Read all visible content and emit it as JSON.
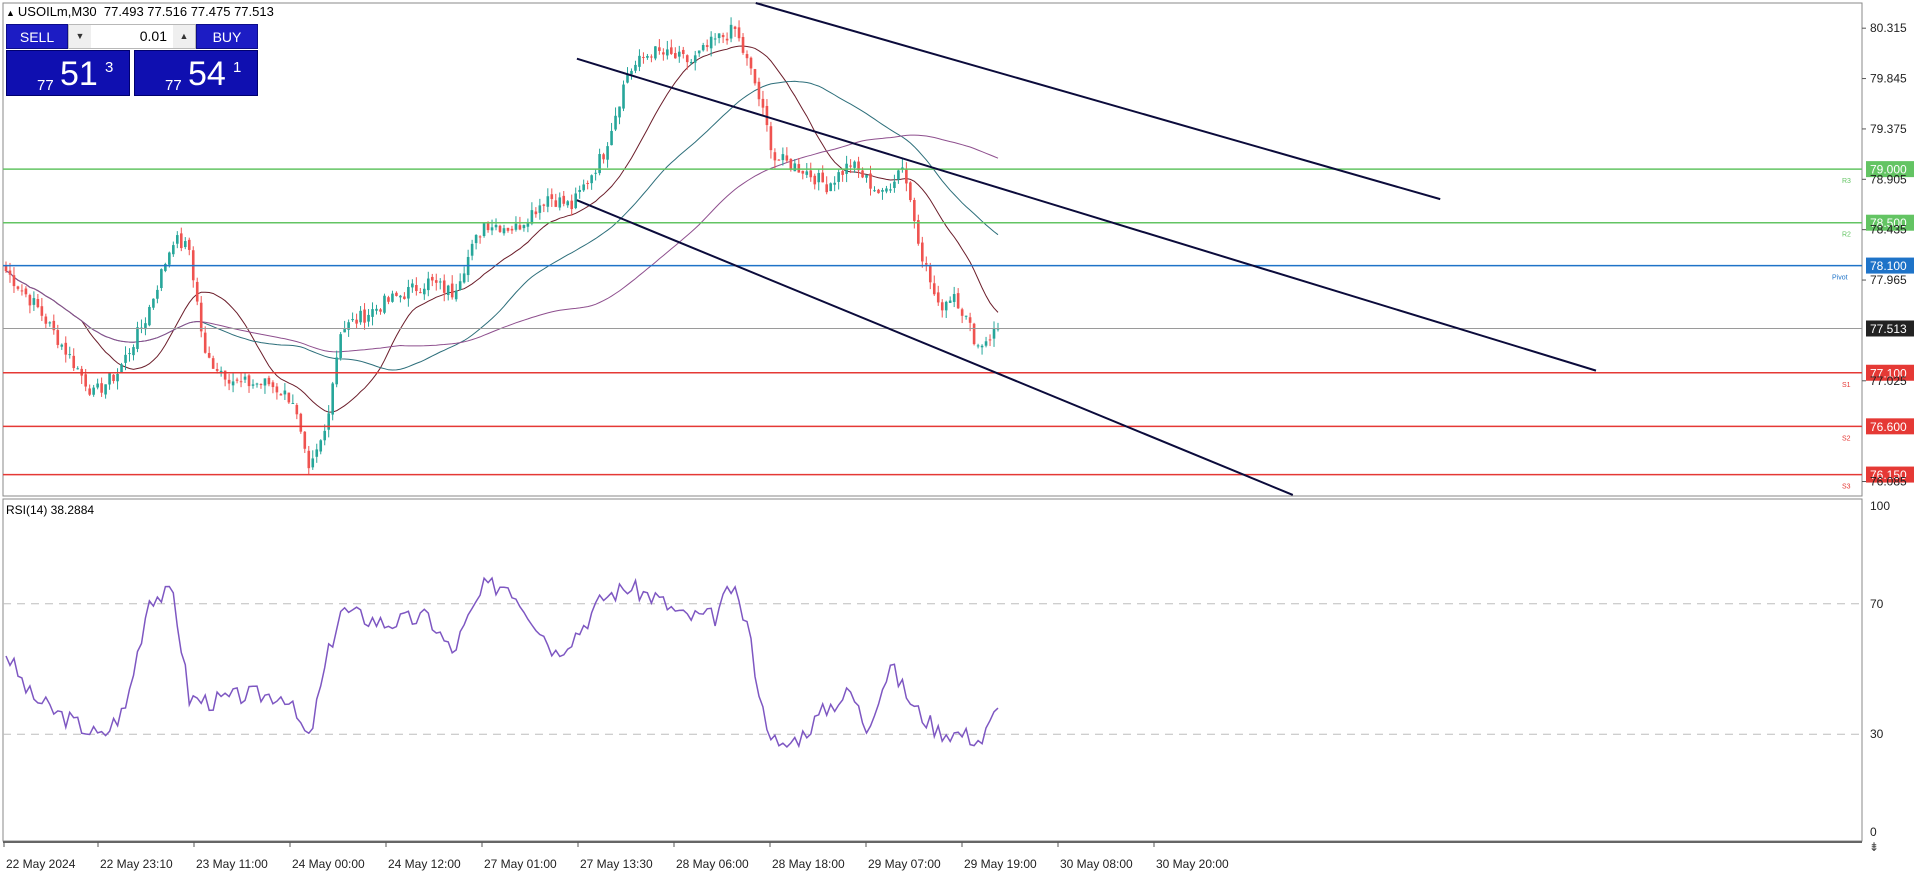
{
  "symbol_info": {
    "label": "USOILm,M30",
    "open": "77.493",
    "high": "77.516",
    "low": "77.475",
    "close": "77.513"
  },
  "trade_panel": {
    "sell_label": "SELL",
    "buy_label": "BUY",
    "lot_value": "0.01",
    "bid": {
      "prefix": "77",
      "big": "51",
      "sup": "3"
    },
    "ask": {
      "prefix": "77",
      "big": "54",
      "sup": "1"
    }
  },
  "colors": {
    "bull": "#26a69a",
    "bear": "#ef5350",
    "resistance": "#63c463",
    "support": "#e53935",
    "pivot": "#1e73c8",
    "current": "#222222",
    "channel": "#0b0b3b",
    "rsi_line": "#7e57c2",
    "ma_fast": "#6b1d2a",
    "ma_mid": "#2c6e7a",
    "ma_slow": "#8e4f8e"
  },
  "chart_data": [
    {
      "type": "candlestick",
      "title": "USOILm,M30",
      "ylim": [
        75.95,
        80.55
      ],
      "y_ticks": [
        "80.315",
        "79.845",
        "79.375",
        "78.905",
        "78.435",
        "77.965",
        "77.025",
        "76.085"
      ],
      "x_ticks": [
        "22 May 2024",
        "22 May 23:10",
        "23 May 11:00",
        "24 May 00:00",
        "24 May 12:00",
        "27 May 01:00",
        "27 May 13:30",
        "28 May 06:00",
        "28 May 18:00",
        "29 May 07:00",
        "29 May 19:00",
        "30 May 08:00",
        "30 May 20:00"
      ],
      "levels": [
        {
          "label": "79.000",
          "tag": "R3",
          "value": 79.0,
          "kind": "resistance"
        },
        {
          "label": "78.500",
          "tag": "R2",
          "value": 78.5,
          "kind": "resistance"
        },
        {
          "label": "78.100",
          "tag": "Pivot",
          "value": 78.1,
          "kind": "pivot"
        },
        {
          "label": "77.513",
          "tag": "",
          "value": 77.513,
          "kind": "current"
        },
        {
          "label": "77.100",
          "tag": "S1",
          "value": 77.1,
          "kind": "support"
        },
        {
          "label": "76.600",
          "tag": "S2",
          "value": 76.6,
          "kind": "support"
        },
        {
          "label": "76.150",
          "tag": "S3",
          "value": 76.15,
          "kind": "support"
        }
      ],
      "close_keypoints": [
        [
          0,
          78.05
        ],
        [
          8,
          77.7
        ],
        [
          16,
          77.25
        ],
        [
          22,
          76.9
        ],
        [
          28,
          77.1
        ],
        [
          35,
          77.6
        ],
        [
          42,
          78.35
        ],
        [
          46,
          78.25
        ],
        [
          50,
          77.25
        ],
        [
          58,
          77.0
        ],
        [
          66,
          77.0
        ],
        [
          72,
          76.85
        ],
        [
          76,
          76.15
        ],
        [
          80,
          76.55
        ],
        [
          84,
          77.5
        ],
        [
          95,
          77.75
        ],
        [
          106,
          77.95
        ],
        [
          112,
          77.85
        ],
        [
          120,
          78.5
        ],
        [
          128,
          78.45
        ],
        [
          136,
          78.75
        ],
        [
          142,
          78.65
        ],
        [
          150,
          79.15
        ],
        [
          156,
          79.9
        ],
        [
          162,
          80.1
        ],
        [
          172,
          80.0
        ],
        [
          178,
          80.2
        ],
        [
          183,
          80.3
        ],
        [
          188,
          79.8
        ],
        [
          193,
          79.1
        ],
        [
          200,
          79.0
        ],
        [
          206,
          78.85
        ],
        [
          212,
          79.05
        ],
        [
          220,
          78.75
        ],
        [
          225,
          79.05
        ],
        [
          230,
          78.2
        ],
        [
          234,
          77.7
        ],
        [
          238,
          77.85
        ],
        [
          244,
          77.35
        ],
        [
          249,
          77.513
        ]
      ],
      "channel_lines": [
        {
          "x": [
            143.3,
            399.1
          ],
          "y": [
            80.03,
            77.12
          ]
        },
        {
          "x": [
            188.2,
            360.0
          ],
          "y": [
            80.55,
            78.72
          ]
        },
        {
          "x": [
            143.3,
            323.0
          ],
          "y": [
            78.71,
            75.96
          ]
        }
      ],
      "moving_averages": [
        {
          "name": "",
          "color_key": "ma_fast",
          "period": 20
        },
        {
          "name": "",
          "color_key": "ma_mid",
          "period": 50
        },
        {
          "name": "",
          "color_key": "ma_slow",
          "period": 100
        }
      ]
    },
    {
      "type": "line",
      "title": "RSI(14) 38.2884",
      "ylim": [
        0,
        100
      ],
      "y_ticks": [
        "100",
        "70",
        "30",
        "0"
      ],
      "levels": [
        70,
        30
      ],
      "series": [
        {
          "name": "",
          "keypoints": [
            [
              0,
              55
            ],
            [
              6,
              42
            ],
            [
              12,
              37
            ],
            [
              18,
              33
            ],
            [
              24,
              29
            ],
            [
              30,
              38
            ],
            [
              36,
              72
            ],
            [
              42,
              73
            ],
            [
              46,
              41
            ],
            [
              52,
              40
            ],
            [
              60,
              42
            ],
            [
              70,
              42
            ],
            [
              76,
              28
            ],
            [
              81,
              55
            ],
            [
              84,
              68
            ],
            [
              95,
              64
            ],
            [
              106,
              66
            ],
            [
              112,
              55
            ],
            [
              120,
              75
            ],
            [
              126,
              76
            ],
            [
              132,
              66
            ],
            [
              138,
              55
            ],
            [
              144,
              62
            ],
            [
              150,
              72
            ],
            [
              156,
              75
            ],
            [
              163,
              72
            ],
            [
              170,
              66
            ],
            [
              178,
              66
            ],
            [
              182,
              75
            ],
            [
              186,
              64
            ],
            [
              190,
              37
            ],
            [
              194,
              25
            ],
            [
              200,
              30
            ],
            [
              206,
              38
            ],
            [
              212,
              43
            ],
            [
              216,
              32
            ],
            [
              222,
              51
            ],
            [
              228,
              38
            ],
            [
              234,
              31
            ],
            [
              240,
              30
            ],
            [
              245,
              28
            ],
            [
              249,
              38
            ]
          ]
        }
      ]
    }
  ]
}
